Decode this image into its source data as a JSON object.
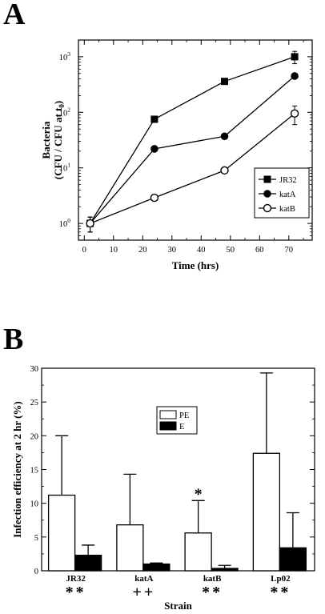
{
  "figure": {
    "panel_a_letter": "A",
    "panel_b_letter": "B"
  },
  "chart_data": [
    {
      "type": "line",
      "xlabel": "Time (hrs)",
      "ylabel_line1": "Bacteria",
      "ylabel_line2": "(CFU / CFU at t0)",
      "xlim": [
        -2,
        78
      ],
      "ylim": [
        0.5,
        2000
      ],
      "yscale": "log",
      "x_ticks": [
        0,
        10,
        20,
        30,
        40,
        50,
        60,
        70
      ],
      "y_ticks": [
        1,
        10,
        100,
        1000
      ],
      "y_tick_labels": [
        "10^0",
        "10^1",
        "10^2",
        "10^3"
      ],
      "legend_position": "lower-right",
      "series": [
        {
          "name": "JR32",
          "marker": "filled-square",
          "x": [
            2,
            24,
            48,
            72
          ],
          "y": [
            1.0,
            75,
            360,
            1000
          ],
          "err": [
            0.3,
            0,
            0,
            250
          ]
        },
        {
          "name": "katA",
          "marker": "filled-circle",
          "x": [
            2,
            24,
            48,
            72
          ],
          "y": [
            1.0,
            22,
            37,
            450
          ],
          "err": [
            0.3,
            0,
            0,
            0
          ]
        },
        {
          "name": "katB",
          "marker": "open-circle",
          "x": [
            2,
            24,
            48,
            72
          ],
          "y": [
            1.0,
            2.9,
            9,
            95
          ],
          "err": [
            0.3,
            0,
            0,
            35
          ]
        }
      ]
    },
    {
      "type": "bar",
      "xlabel": "Strain",
      "ylabel": "Infection efficiency at 2 hr (%)",
      "ylim": [
        0,
        30
      ],
      "y_ticks": [
        0,
        5,
        10,
        15,
        20,
        25,
        30
      ],
      "categories": [
        "JR32",
        "katA",
        "katB",
        "Lp02"
      ],
      "category_marks": [
        "**",
        "++",
        "**",
        "**"
      ],
      "bar_annotations": [
        {
          "category": "katB",
          "series": "PE",
          "text": "*"
        }
      ],
      "legend_position": "top-center",
      "series": [
        {
          "name": "PE",
          "fill": "#ffffff",
          "values": [
            11.2,
            6.8,
            5.6,
            17.4
          ],
          "err": [
            8.8,
            7.5,
            4.8,
            11.9
          ]
        },
        {
          "name": "E",
          "fill": "#000000",
          "values": [
            2.3,
            1.0,
            0.35,
            3.4
          ],
          "err": [
            1.5,
            0.15,
            0.45,
            5.2
          ]
        }
      ]
    }
  ]
}
